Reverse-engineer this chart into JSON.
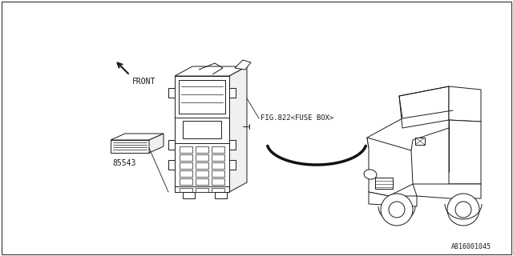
{
  "background_color": "#ffffff",
  "border_color": "#000000",
  "line_color": "#1a1a1a",
  "text_color": "#1a1a1a",
  "part_number_label": "85543",
  "fuse_box_label": "FIG.822<FUSE BOX>",
  "front_label": "FRONT",
  "diagram_id": "A816001045",
  "fig_width": 6.4,
  "fig_height": 3.2,
  "dpi": 100
}
